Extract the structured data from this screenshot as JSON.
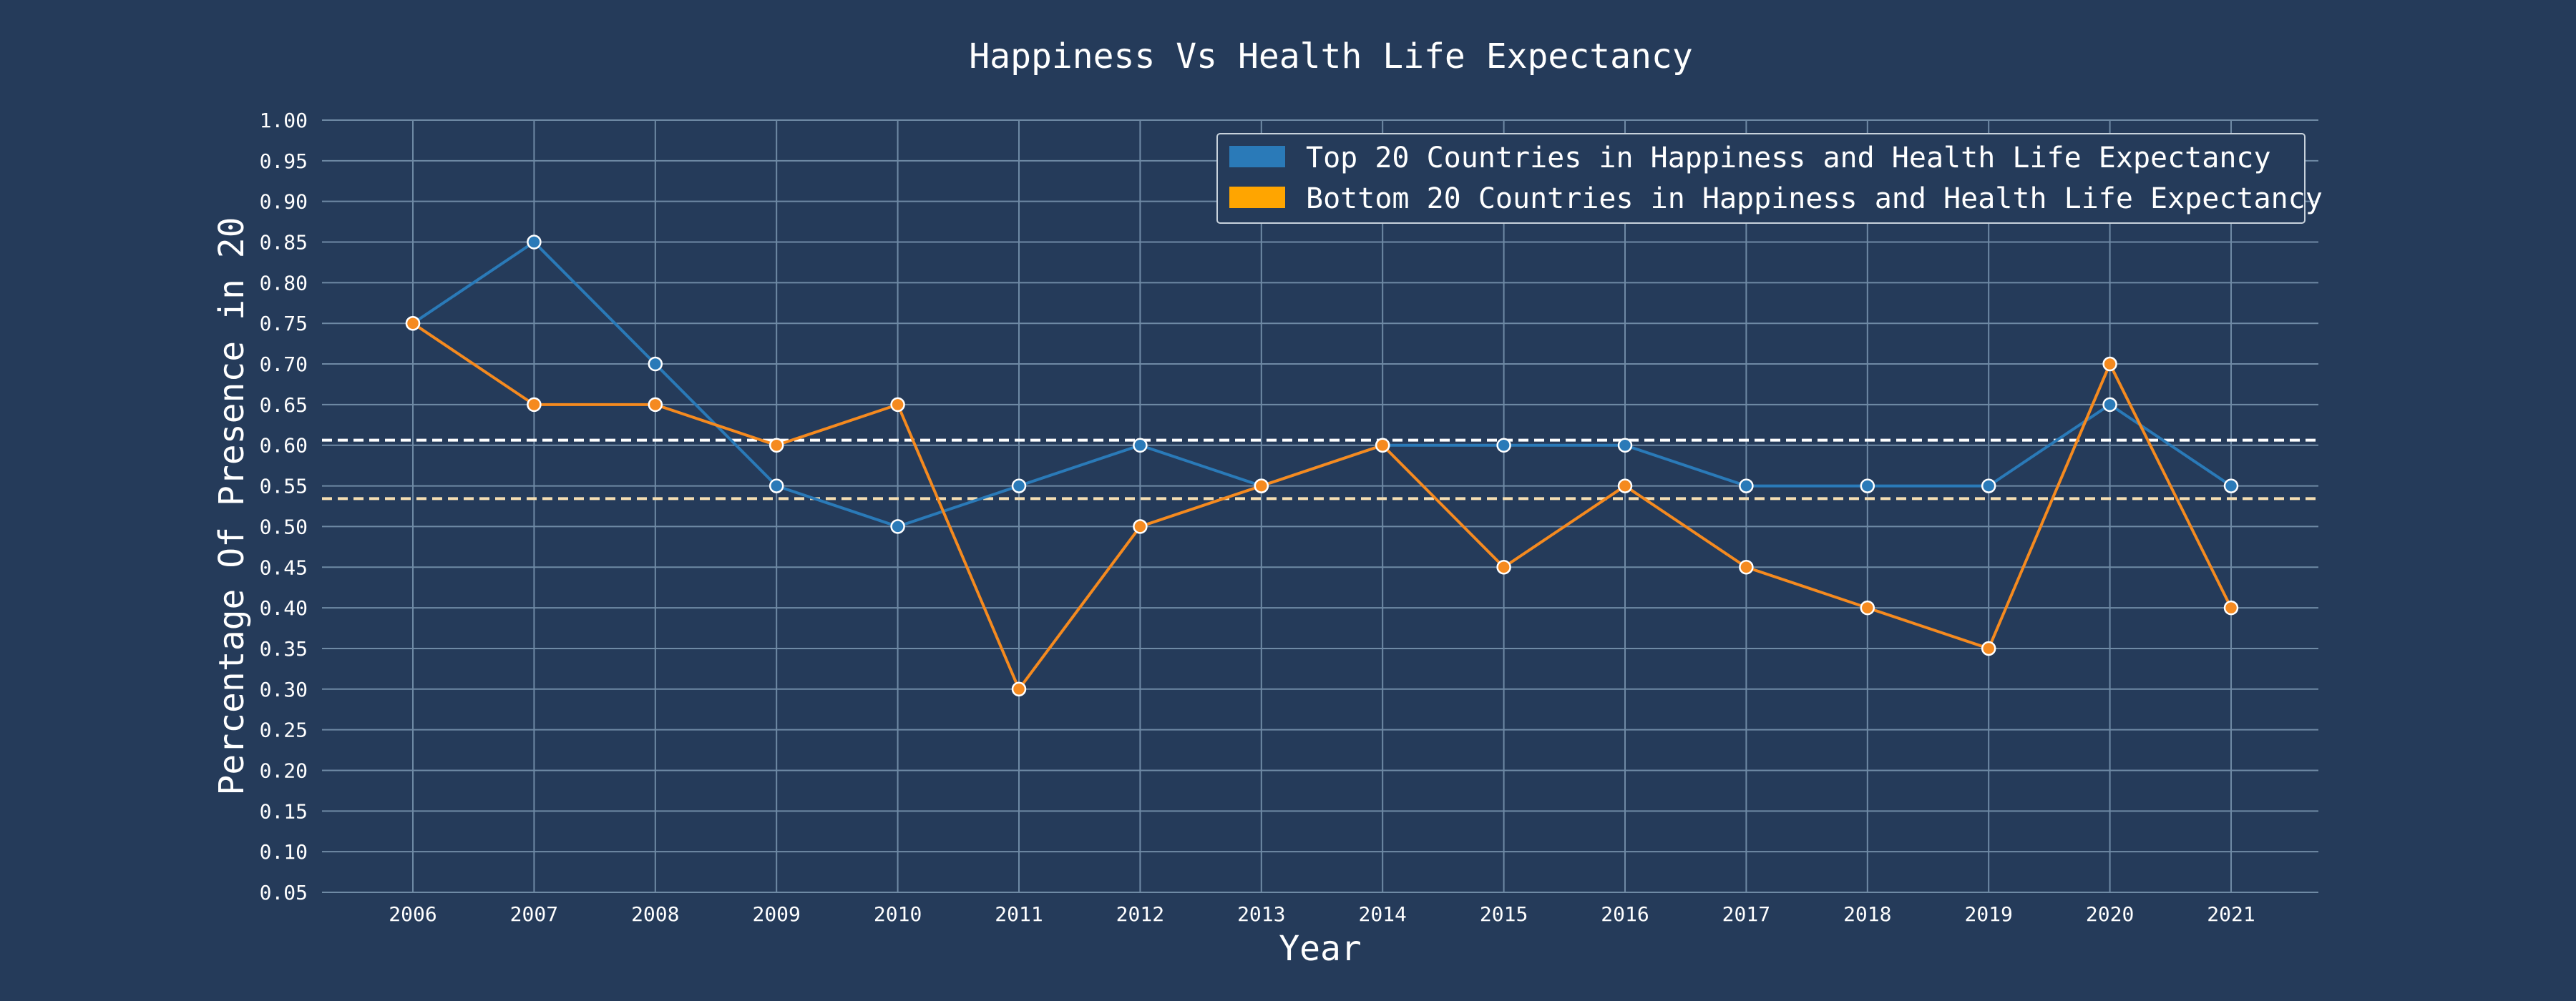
{
  "chart_data": {
    "type": "line",
    "title": "Happiness Vs Health Life Expectancy",
    "xlabel": "Year",
    "ylabel": "Percentage Of Presence in 20",
    "categories": [
      "2006",
      "2007",
      "2008",
      "2009",
      "2010",
      "2011",
      "2012",
      "2013",
      "2014",
      "2015",
      "2016",
      "2017",
      "2018",
      "2019",
      "2020",
      "2021"
    ],
    "ylim": [
      0.05,
      1.0
    ],
    "yticks": [
      "0.05",
      "0.10",
      "0.15",
      "0.20",
      "0.25",
      "0.30",
      "0.35",
      "0.40",
      "0.45",
      "0.50",
      "0.55",
      "0.60",
      "0.65",
      "0.70",
      "0.75",
      "0.80",
      "0.85",
      "0.90",
      "0.95",
      "1.00"
    ],
    "grid": true,
    "legend_position": "top-right",
    "series": [
      {
        "name": "Top 20 Countries in Happiness and Health Life Expectancy",
        "color": "#2a7ab8",
        "values": [
          0.75,
          0.85,
          0.7,
          0.55,
          0.5,
          0.55,
          0.6,
          0.55,
          0.6,
          0.6,
          0.6,
          0.55,
          0.55,
          0.55,
          0.65,
          0.55
        ],
        "mean": 0.6063
      },
      {
        "name": "Bottom 20 Countries in Happiness and Health Life Expectancy",
        "color": "#f58a1f",
        "values": [
          0.75,
          0.65,
          0.65,
          0.6,
          0.65,
          0.3,
          0.5,
          0.55,
          0.6,
          0.45,
          0.55,
          0.45,
          0.4,
          0.35,
          0.7,
          0.4
        ],
        "mean": 0.5344
      }
    ]
  }
}
